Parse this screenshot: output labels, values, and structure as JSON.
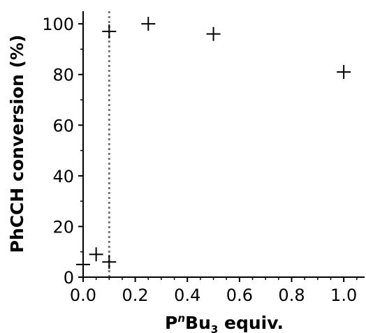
{
  "chart_data": {
    "type": "scatter",
    "xlabel": {
      "base": "P",
      "italic_superscript": "n",
      "middle": "Bu",
      "subscript": "3",
      "suffix": " equiv."
    },
    "ylabel": "PhCCH conversion (%)",
    "xlim": [
      0,
      1.08
    ],
    "ylim": [
      0,
      105
    ],
    "xticks": [
      0.0,
      0.2,
      0.4,
      0.6,
      0.8,
      1.0
    ],
    "xtick_labels": [
      "0.0",
      "0.2",
      "0.4",
      "0.6",
      "0.8",
      "1.0"
    ],
    "yticks": [
      0,
      20,
      40,
      60,
      80,
      100
    ],
    "ytick_labels": [
      "0",
      "20",
      "40",
      "60",
      "80",
      "100"
    ],
    "x_minor_tick_step": 0.05,
    "y_minor_tick_step": 10,
    "grid": false,
    "marker": "plus",
    "marker_color": "#000000",
    "reference_line": {
      "orientation": "vertical",
      "x": 0.1,
      "style": "dotted",
      "color": "#777777"
    },
    "series": [
      {
        "points": [
          {
            "x": 0.0,
            "y": 5
          },
          {
            "x": 0.05,
            "y": 9
          },
          {
            "x": 0.1,
            "y": 6
          },
          {
            "x": 0.1,
            "y": 97
          },
          {
            "x": 0.25,
            "y": 100
          },
          {
            "x": 0.5,
            "y": 96
          },
          {
            "x": 1.0,
            "y": 81
          }
        ]
      }
    ]
  }
}
